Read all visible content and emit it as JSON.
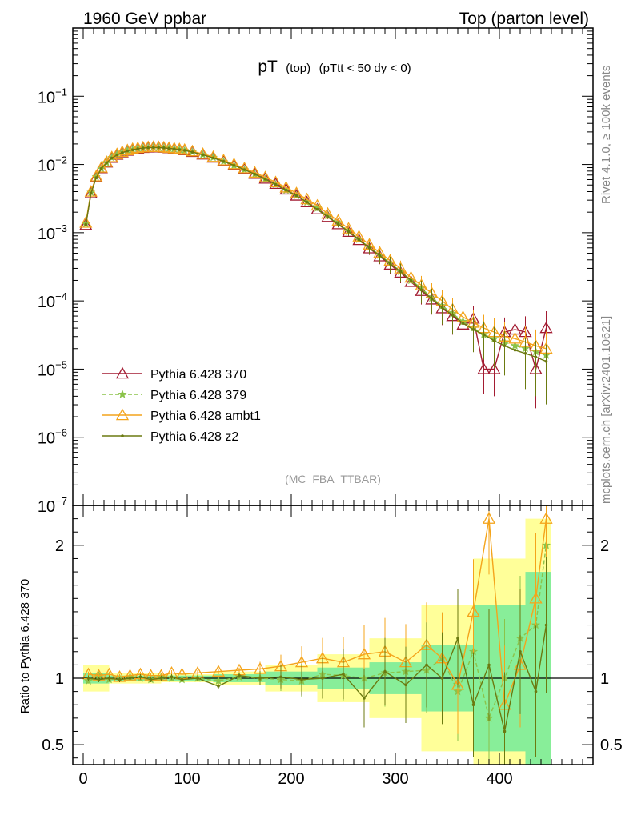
{
  "header": {
    "left_label": "1960 GeV ppbar",
    "right_label": "Top (parton level)"
  },
  "side_labels": {
    "rivet": "Rivet 4.1.0, ≥ 100k events",
    "mcplots": "mcplots.cern.ch [arXiv:2401.10621]"
  },
  "watermark": "(MC_FBA_TTBAR)",
  "chart_data": [
    {
      "type": "line",
      "panel": "main",
      "title": "pT (top) (pTtt < 50 dy < 0)",
      "title_parts": {
        "main": "pT",
        "sub1": "(top)",
        "sub2": "(pTtt < 50 dy < 0)"
      },
      "xlabel": "",
      "ylabel": "",
      "yscale": "log",
      "xlim": [
        -10,
        490
      ],
      "ylim": [
        1e-07,
        1
      ],
      "y_ticks": [
        {
          "value": 0.1,
          "label": "10",
          "exp": "−1"
        },
        {
          "value": 0.01,
          "label": "10",
          "exp": "−2"
        },
        {
          "value": 0.001,
          "label": "10",
          "exp": "−3"
        },
        {
          "value": 0.0001,
          "label": "10",
          "exp": "−4"
        },
        {
          "value": 1e-05,
          "label": "10",
          "exp": "−5"
        },
        {
          "value": 1e-06,
          "label": "10",
          "exp": "−6"
        },
        {
          "value": 1e-07,
          "label": "10",
          "exp": "−7"
        }
      ],
      "series": [
        {
          "name": "Pythia 6.428 370",
          "color": "#a31c32",
          "marker": "triangle-open",
          "dash": "solid",
          "x": [
            2.5,
            7.5,
            12.5,
            17.5,
            22.5,
            27.5,
            32.5,
            37.5,
            42.5,
            47.5,
            52.5,
            57.5,
            62.5,
            67.5,
            72.5,
            77.5,
            82.5,
            87.5,
            92.5,
            97.5,
            105,
            115,
            125,
            135,
            145,
            155,
            165,
            175,
            185,
            195,
            205,
            215,
            225,
            235,
            245,
            255,
            265,
            275,
            285,
            295,
            305,
            315,
            325,
            335,
            345,
            355,
            365,
            375,
            385,
            395,
            405,
            415,
            425,
            435,
            445
          ],
          "y": [
            0.0013,
            0.0038,
            0.0065,
            0.0088,
            0.0107,
            0.0125,
            0.0139,
            0.015,
            0.0159,
            0.0166,
            0.0171,
            0.0175,
            0.0177,
            0.0178,
            0.0178,
            0.0176,
            0.0173,
            0.017,
            0.0166,
            0.0162,
            0.0153,
            0.014,
            0.0126,
            0.0112,
            0.0098,
            0.0085,
            0.0073,
            0.0062,
            0.0052,
            0.0043,
            0.0035,
            0.0028,
            0.0022,
            0.0017,
            0.00133,
            0.00103,
            0.00078,
            0.00059,
            0.00045,
            0.00034,
            0.00026,
            0.00019,
            0.00014,
            0.000105,
            7.8e-05,
            6e-05,
            4.5e-05,
            5.5e-05,
            1e-05,
            1e-05,
            3.5e-05,
            3.8e-05,
            3.5e-05,
            1e-05,
            4e-05
          ]
        },
        {
          "name": "Pythia 6.428 379",
          "color": "#8bc34a",
          "marker": "star",
          "dash": "dashed",
          "x": [
            2.5,
            7.5,
            12.5,
            17.5,
            22.5,
            27.5,
            32.5,
            37.5,
            42.5,
            47.5,
            52.5,
            57.5,
            62.5,
            67.5,
            72.5,
            77.5,
            82.5,
            87.5,
            92.5,
            97.5,
            105,
            115,
            125,
            135,
            145,
            155,
            165,
            175,
            185,
            195,
            205,
            215,
            225,
            235,
            245,
            255,
            265,
            275,
            285,
            295,
            305,
            315,
            325,
            335,
            345,
            355,
            365,
            375,
            385,
            395,
            405,
            415,
            425,
            435,
            445
          ],
          "y": [
            0.00135,
            0.0039,
            0.0066,
            0.0087,
            0.0106,
            0.0126,
            0.014,
            0.0151,
            0.016,
            0.0165,
            0.0172,
            0.0174,
            0.0176,
            0.0179,
            0.0177,
            0.0175,
            0.0172,
            0.0169,
            0.0165,
            0.016,
            0.0152,
            0.0139,
            0.0127,
            0.0111,
            0.0097,
            0.0084,
            0.0072,
            0.0061,
            0.0051,
            0.0042,
            0.0035,
            0.0028,
            0.0023,
            0.0018,
            0.0014,
            0.00105,
            0.0008,
            0.00061,
            0.00047,
            0.00036,
            0.00027,
            0.0002,
            0.000155,
            0.00011,
            8.5e-05,
            6.5e-05,
            5e-05,
            4e-05,
            3.2e-05,
            2.8e-05,
            2.5e-05,
            2.2e-05,
            2e-05,
            1.8e-05,
            1.6e-05
          ]
        },
        {
          "name": "Pythia 6.428 ambt1",
          "color": "#f4a41b",
          "marker": "triangle-open",
          "dash": "solid",
          "x": [
            2.5,
            7.5,
            12.5,
            17.5,
            22.5,
            27.5,
            32.5,
            37.5,
            42.5,
            47.5,
            52.5,
            57.5,
            62.5,
            67.5,
            72.5,
            77.5,
            82.5,
            87.5,
            92.5,
            97.5,
            105,
            115,
            125,
            135,
            145,
            155,
            165,
            175,
            185,
            195,
            205,
            215,
            225,
            235,
            245,
            255,
            265,
            275,
            285,
            295,
            305,
            315,
            325,
            335,
            345,
            355,
            365,
            375,
            385,
            395,
            405,
            415,
            425,
            435,
            445
          ],
          "y": [
            0.0014,
            0.004,
            0.0067,
            0.009,
            0.0109,
            0.0128,
            0.0142,
            0.0153,
            0.0162,
            0.0169,
            0.0174,
            0.0178,
            0.018,
            0.0181,
            0.018,
            0.0178,
            0.0175,
            0.0172,
            0.0168,
            0.0164,
            0.0156,
            0.0143,
            0.0129,
            0.0115,
            0.0101,
            0.0088,
            0.0076,
            0.0065,
            0.0055,
            0.0046,
            0.0038,
            0.0031,
            0.0025,
            0.0019,
            0.0015,
            0.00115,
            0.00088,
            0.00067,
            0.00051,
            0.00039,
            0.0003,
            0.00022,
            0.00017,
            0.00013,
            0.0001,
            7.5e-05,
            5.8e-05,
            4.8e-05,
            4e-05,
            3.5e-05,
            3e-05,
            2.8e-05,
            2.5e-05,
            2.2e-05,
            2e-05
          ]
        },
        {
          "name": "Pythia 6.428 z2",
          "color": "#6b7a10",
          "marker": "dot",
          "dash": "solid",
          "x": [
            2.5,
            7.5,
            12.5,
            17.5,
            22.5,
            27.5,
            32.5,
            37.5,
            42.5,
            47.5,
            52.5,
            57.5,
            62.5,
            67.5,
            72.5,
            77.5,
            82.5,
            87.5,
            92.5,
            97.5,
            105,
            115,
            125,
            135,
            145,
            155,
            165,
            175,
            185,
            195,
            205,
            215,
            225,
            235,
            245,
            255,
            265,
            275,
            285,
            295,
            305,
            315,
            325,
            335,
            345,
            355,
            365,
            375,
            385,
            395,
            405,
            415,
            425,
            435,
            445
          ],
          "y": [
            0.00132,
            0.0038,
            0.0064,
            0.0087,
            0.0106,
            0.0124,
            0.0138,
            0.0149,
            0.0158,
            0.0164,
            0.017,
            0.0174,
            0.0176,
            0.0177,
            0.0177,
            0.0175,
            0.0172,
            0.0169,
            0.0165,
            0.0161,
            0.0152,
            0.0139,
            0.0125,
            0.0111,
            0.0097,
            0.0084,
            0.0072,
            0.0061,
            0.0051,
            0.0042,
            0.0035,
            0.0028,
            0.0022,
            0.00171,
            0.00134,
            0.00104,
            0.00079,
            0.0006,
            0.00046,
            0.00035,
            0.00027,
            0.0002,
            0.000145,
            0.000108,
            8e-05,
            6.2e-05,
            4.7e-05,
            3.8e-05,
            3.2e-05,
            2.6e-05,
            2.2e-05,
            1.9e-05,
            1.7e-05,
            1.5e-05,
            1.3e-05
          ]
        }
      ]
    },
    {
      "type": "line",
      "panel": "ratio",
      "ylabel": "Ratio to Pythia 6.428 370",
      "xlim": [
        -10,
        490
      ],
      "ylim": [
        0.35,
        2.3
      ],
      "x_ticks": [
        0,
        100,
        200,
        300,
        400
      ],
      "y_ticks": [
        0.5,
        1,
        2
      ],
      "reference_line": 1,
      "uncertainty_bands": [
        {
          "name": "yellow-band",
          "color": "#ffff99",
          "x": [
            0,
            50,
            100,
            150,
            200,
            250,
            300,
            350,
            400,
            450
          ],
          "half_width": [
            0.1,
            0.04,
            0.03,
            0.05,
            0.1,
            0.18,
            0.3,
            0.55,
            0.9,
            1.2
          ]
        },
        {
          "name": "green-band",
          "color": "#88ee99",
          "x": [
            0,
            50,
            100,
            150,
            200,
            250,
            300,
            350,
            400,
            450
          ],
          "half_width": [
            0.04,
            0.02,
            0.02,
            0.03,
            0.05,
            0.08,
            0.12,
            0.25,
            0.55,
            0.8
          ]
        }
      ],
      "series": [
        {
          "name": "Pythia 6.428 379",
          "color": "#8bc34a",
          "x": [
            5,
            15,
            25,
            35,
            45,
            55,
            65,
            75,
            85,
            95,
            110,
            130,
            150,
            170,
            190,
            210,
            230,
            250,
            270,
            290,
            310,
            330,
            345,
            360,
            375,
            390,
            405,
            420,
            435,
            445
          ],
          "y": [
            0.98,
            1.02,
            0.99,
            1.0,
            1.01,
            1.0,
            0.99,
            1.01,
            1.0,
            0.99,
            1.0,
            0.98,
            1.01,
            1.0,
            0.99,
            0.98,
            1.03,
            1.02,
            1.0,
            1.04,
            1.05,
            1.06,
            1.15,
            0.9,
            1.2,
            0.7,
            1.0,
            1.3,
            1.4,
            2.0
          ]
        },
        {
          "name": "Pythia 6.428 ambt1",
          "color": "#f4a41b",
          "x": [
            5,
            15,
            25,
            35,
            45,
            55,
            65,
            75,
            85,
            95,
            110,
            130,
            150,
            170,
            190,
            210,
            230,
            250,
            270,
            290,
            310,
            330,
            345,
            360,
            375,
            390,
            405,
            420,
            435,
            445
          ],
          "y": [
            1.03,
            1.02,
            1.03,
            1.01,
            1.02,
            1.03,
            1.02,
            1.02,
            1.04,
            1.03,
            1.04,
            1.05,
            1.06,
            1.07,
            1.09,
            1.12,
            1.15,
            1.12,
            1.18,
            1.2,
            1.12,
            1.25,
            1.15,
            0.95,
            1.5,
            2.2,
            0.8,
            1.1,
            1.6,
            2.2
          ]
        },
        {
          "name": "Pythia 6.428 z2",
          "color": "#6b7a10",
          "x": [
            5,
            15,
            25,
            35,
            45,
            55,
            65,
            75,
            85,
            95,
            110,
            130,
            150,
            170,
            190,
            210,
            230,
            250,
            270,
            290,
            310,
            330,
            345,
            360,
            375,
            390,
            405,
            420,
            435,
            445
          ],
          "y": [
            1.0,
            0.99,
            1.0,
            0.99,
            1.0,
            1.01,
            0.99,
            1.0,
            1.01,
            0.99,
            1.0,
            0.94,
            1.02,
            1.0,
            1.01,
            0.99,
            1.0,
            1.03,
            0.85,
            1.05,
            0.95,
            1.1,
            1.0,
            1.3,
            0.8,
            1.1,
            0.6,
            1.2,
            0.9,
            1.4
          ]
        }
      ]
    }
  ],
  "legend": [
    {
      "label": "Pythia 6.428 370",
      "color": "#a31c32",
      "marker": "triangle-open",
      "dash": "solid"
    },
    {
      "label": "Pythia 6.428 379",
      "color": "#8bc34a",
      "marker": "star",
      "dash": "dashed"
    },
    {
      "label": "Pythia 6.428 ambt1",
      "color": "#f4a41b",
      "marker": "triangle-open",
      "dash": "solid"
    },
    {
      "label": "Pythia 6.428 z2",
      "color": "#6b7a10",
      "marker": "dot",
      "dash": "solid"
    }
  ]
}
